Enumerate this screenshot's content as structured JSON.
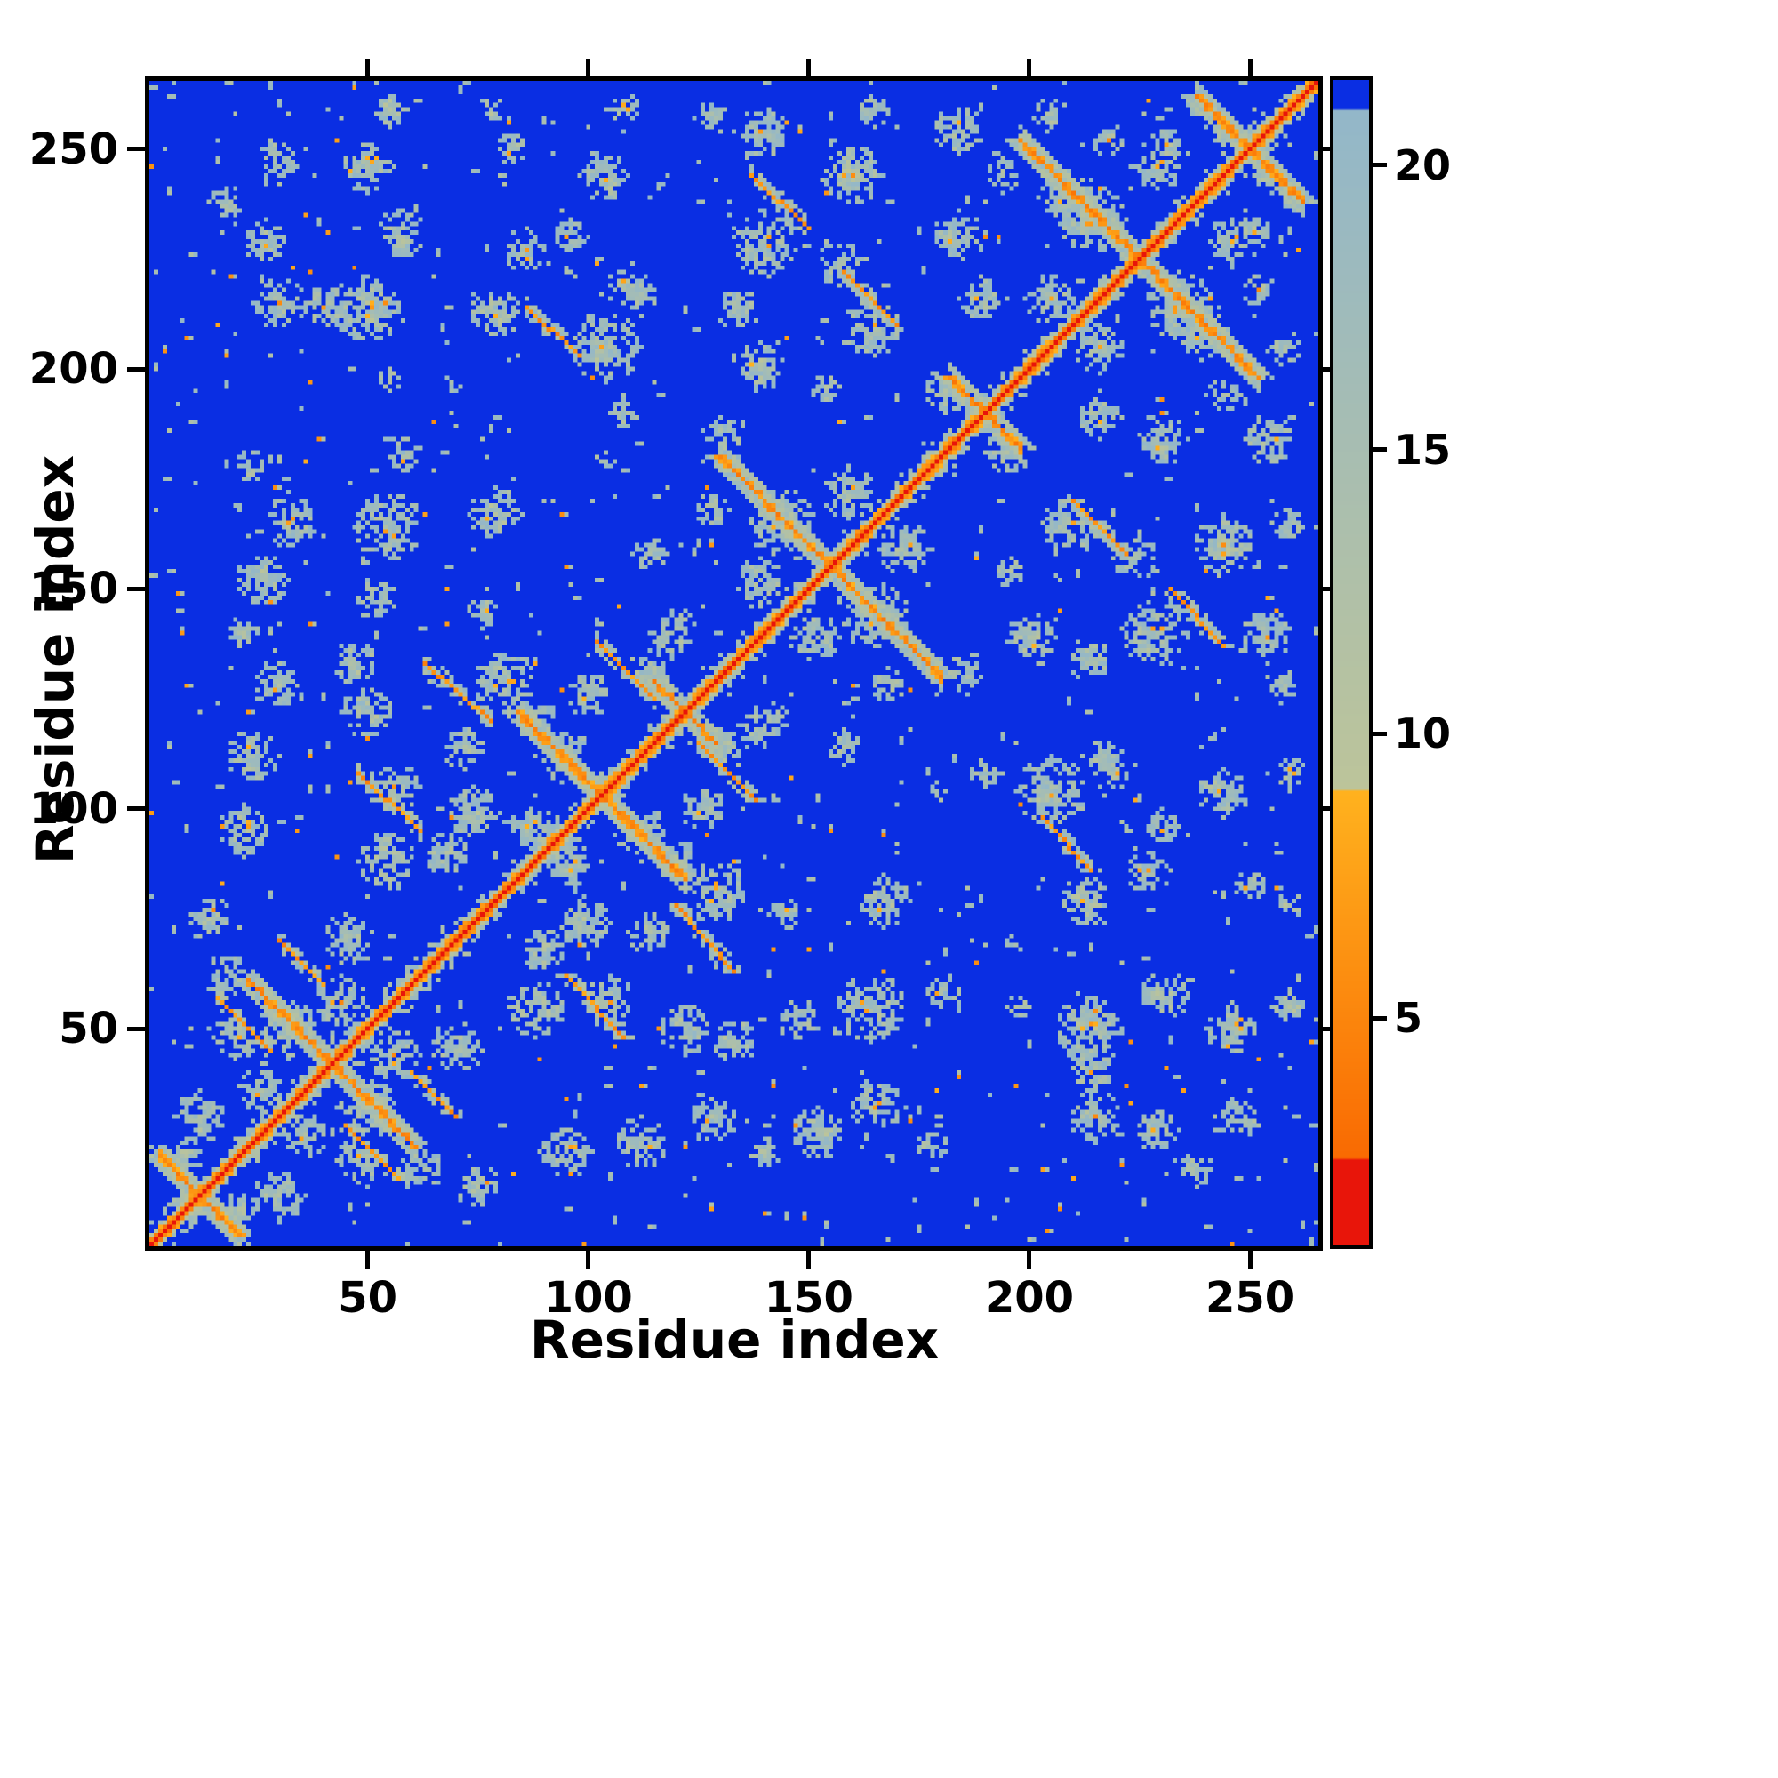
{
  "figure": {
    "background": "#ffffff"
  },
  "chart_data": {
    "type": "heatmap",
    "title": "",
    "xlabel": "Residue index",
    "ylabel": "Residue index",
    "n_residues": 265,
    "axis_range": [
      1,
      265
    ],
    "x_ticks": [
      50,
      100,
      150,
      200,
      250
    ],
    "y_ticks": [
      50,
      100,
      150,
      200,
      250
    ],
    "legend": "none",
    "grid": false,
    "colorbar": {
      "position": "right",
      "ticks": [
        5,
        10,
        15,
        20
      ],
      "vmin": 1.0,
      "vmax": 21.5
    },
    "colormap": {
      "blue": "#0a2ee3",
      "gray_low": "#bcc49a",
      "gray_high": "#93b7c9",
      "orange_high": "#ffb21e",
      "orange_low": "#f96a02",
      "red": "#e8150a",
      "t_blue": 21.0,
      "t_gray": 9.0,
      "t_orange": 2.5
    },
    "diagonal": {
      "value": 0.8,
      "color": "#e8150a"
    },
    "antidiagonal_streaks": [
      [
        12,
        18
      ],
      [
        42,
        38
      ],
      [
        103,
        38
      ],
      [
        122,
        14
      ],
      [
        155,
        50
      ],
      [
        190,
        16
      ],
      [
        225,
        54
      ],
      [
        250,
        24
      ]
    ],
    "offdiagonal_streaks": [
      [
        95,
        62,
        108,
        48
      ],
      [
        120,
        78,
        133,
        63
      ],
      [
        45,
        28,
        57,
        16
      ],
      [
        203,
        98,
        214,
        86
      ],
      [
        232,
        150,
        244,
        137
      ],
      [
        210,
        170,
        222,
        158
      ],
      [
        60,
        40,
        70,
        30
      ],
      [
        125,
        115,
        138,
        102
      ]
    ],
    "contact_clusters": [
      [
        30,
        12,
        6
      ],
      [
        48,
        20,
        5
      ],
      [
        62,
        18,
        5
      ],
      [
        75,
        14,
        5
      ],
      [
        95,
        22,
        6
      ],
      [
        112,
        24,
        6
      ],
      [
        128,
        30,
        6
      ],
      [
        140,
        22,
        4
      ],
      [
        152,
        26,
        6
      ],
      [
        165,
        33,
        6
      ],
      [
        178,
        24,
        4
      ],
      [
        215,
        30,
        6
      ],
      [
        229,
        27,
        5
      ],
      [
        248,
        30,
        5
      ],
      [
        238,
        18,
        4
      ],
      [
        70,
        45,
        6
      ],
      [
        88,
        54,
        7
      ],
      [
        105,
        56,
        6
      ],
      [
        122,
        50,
        6
      ],
      [
        133,
        47,
        5
      ],
      [
        148,
        52,
        5
      ],
      [
        164,
        55,
        8
      ],
      [
        180,
        58,
        4
      ],
      [
        214,
        50,
        8
      ],
      [
        214,
        40,
        5
      ],
      [
        231,
        57,
        6
      ],
      [
        246,
        50,
        6
      ],
      [
        259,
        55,
        4
      ],
      [
        198,
        55,
        3
      ],
      [
        99,
        74,
        6
      ],
      [
        114,
        72,
        5
      ],
      [
        129,
        81,
        7
      ],
      [
        145,
        76,
        4
      ],
      [
        167,
        79,
        6
      ],
      [
        213,
        79,
        6
      ],
      [
        227,
        86,
        5
      ],
      [
        250,
        82,
        4
      ],
      [
        90,
        68,
        5
      ],
      [
        120,
        88,
        5
      ],
      [
        259,
        78,
        3
      ],
      [
        205,
        104,
        8
      ],
      [
        219,
        109,
        5
      ],
      [
        244,
        104,
        6
      ],
      [
        259,
        108,
        4
      ],
      [
        190,
        108,
        4
      ],
      [
        230,
        96,
        4
      ],
      [
        140,
        119,
        6
      ],
      [
        158,
        114,
        4
      ],
      [
        126,
        100,
        5
      ],
      [
        180,
        104,
        3
      ],
      [
        216,
        112,
        4
      ],
      [
        200,
        139,
        6
      ],
      [
        214,
        134,
        5
      ],
      [
        229,
        140,
        8
      ],
      [
        254,
        139,
        6
      ],
      [
        186,
        130,
        4
      ],
      [
        257,
        128,
        4
      ],
      [
        168,
        128,
        4
      ],
      [
        209,
        164,
        7
      ],
      [
        224,
        157,
        5
      ],
      [
        244,
        160,
        7
      ],
      [
        259,
        165,
        4
      ],
      [
        196,
        154,
        4
      ],
      [
        230,
        184,
        6
      ],
      [
        254,
        184,
        6
      ],
      [
        216,
        189,
        5
      ],
      [
        244,
        194,
        4
      ],
      [
        239,
        209,
        7
      ],
      [
        258,
        204,
        4
      ],
      [
        252,
        218,
        4
      ],
      [
        259,
        238,
        3
      ],
      [
        251,
        231,
        4
      ],
      [
        50,
        32,
        7
      ],
      [
        56,
        44,
        6
      ],
      [
        36,
        26,
        5
      ],
      [
        112,
        94,
        6
      ],
      [
        96,
        87,
        5
      ],
      [
        165,
        144,
        8
      ],
      [
        151,
        139,
        6
      ],
      [
        172,
        159,
        6
      ],
      [
        234,
        214,
        8
      ],
      [
        216,
        205,
        6
      ],
      [
        246,
        229,
        6
      ],
      [
        195,
        181,
        5
      ],
      [
        255,
        244,
        4
      ],
      [
        20,
        8,
        5
      ],
      [
        131,
        114,
        5
      ]
    ],
    "noise": {
      "seed": 42,
      "speckle_density": 0.012,
      "orange_fraction": 0.15
    }
  }
}
